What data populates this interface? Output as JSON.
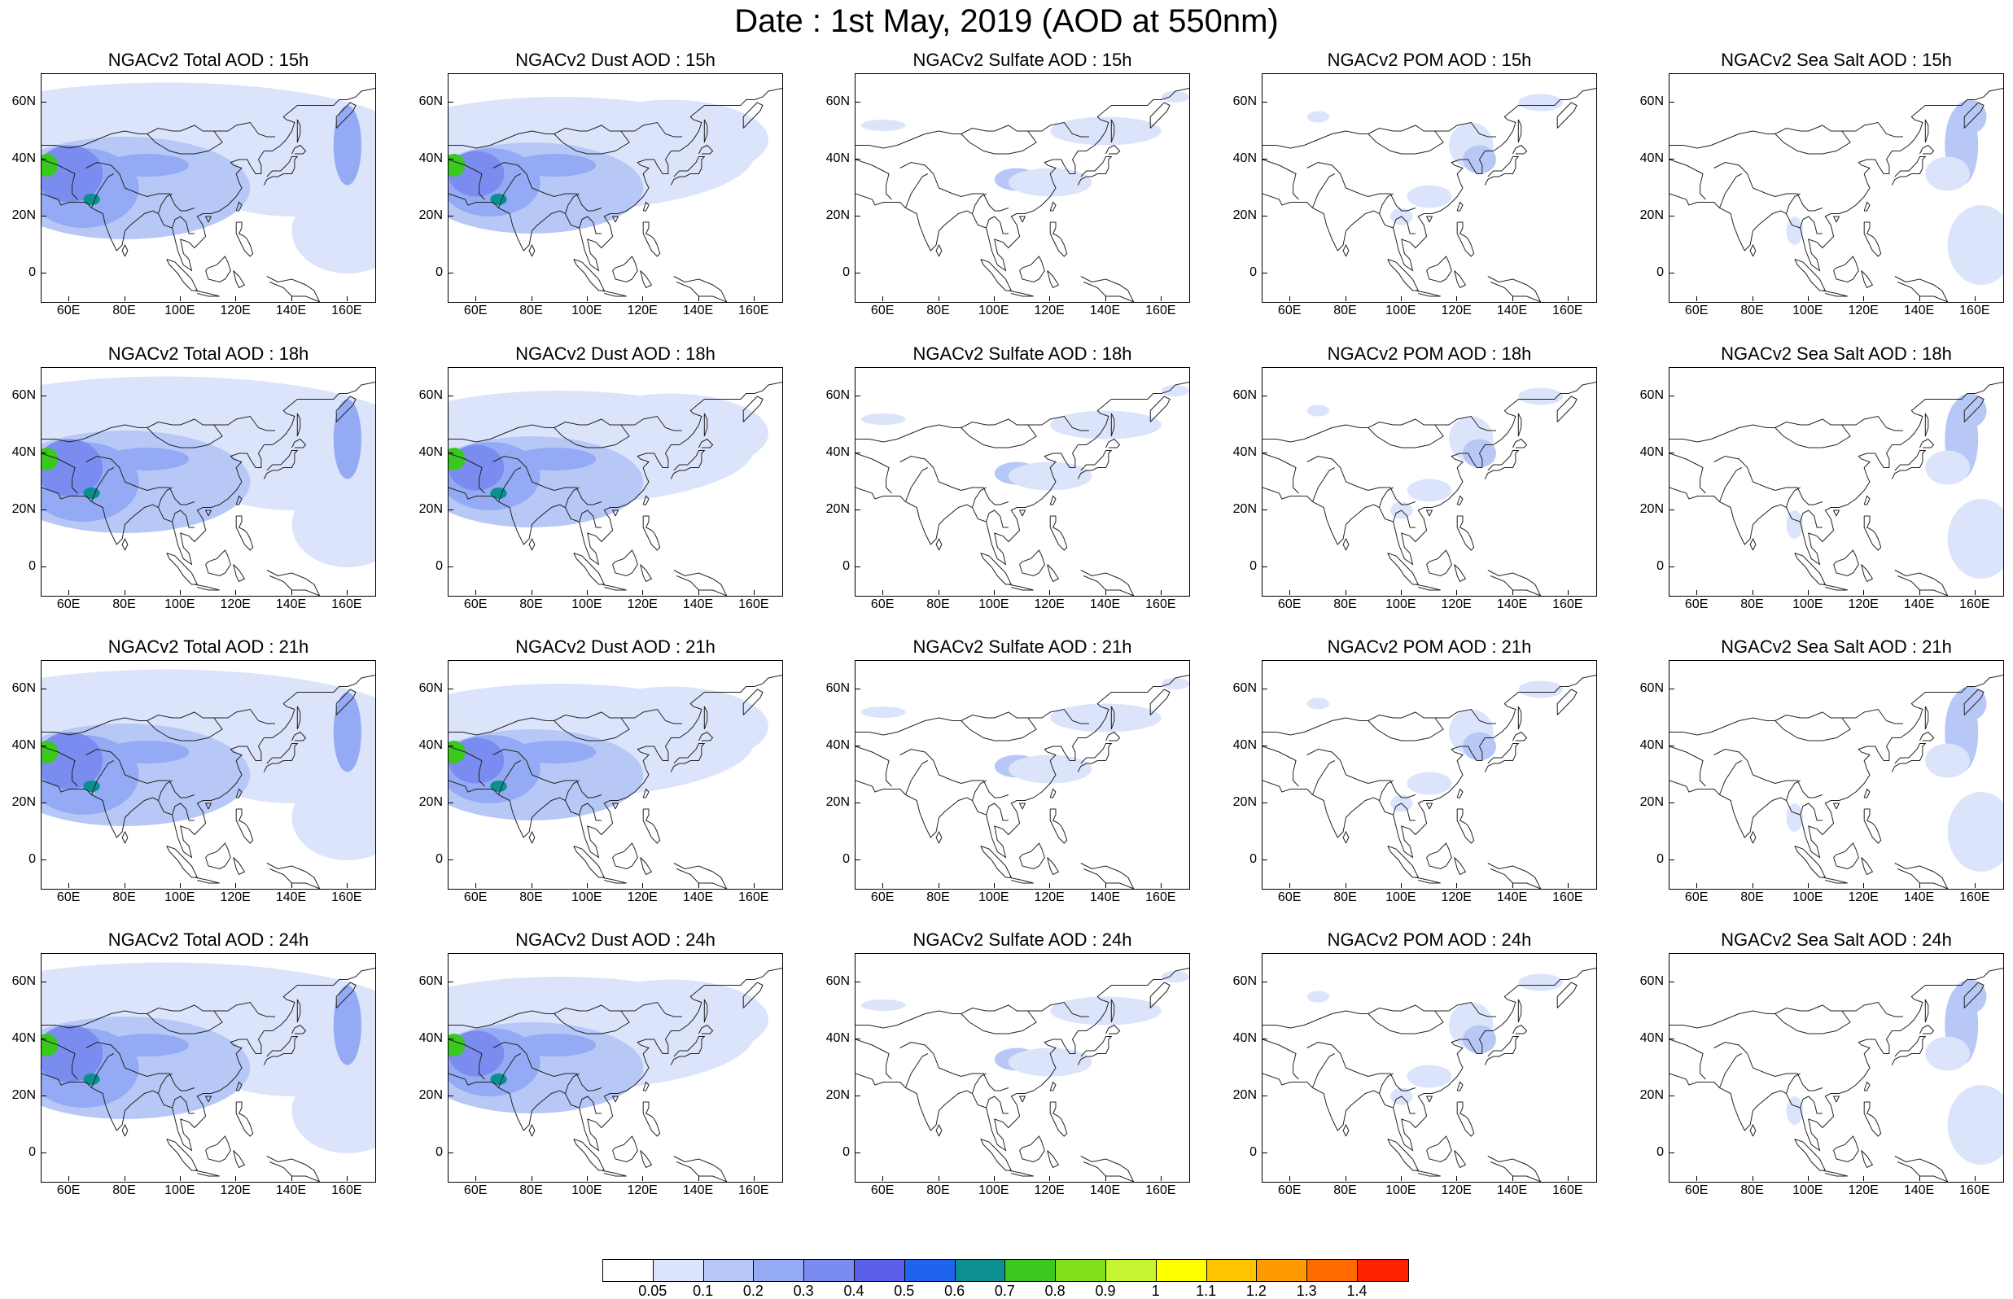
{
  "title": "Date : 1st May, 2019 (AOD at 550nm)",
  "lat_labels": [
    "60N",
    "40N",
    "20N",
    "0"
  ],
  "lat_values": [
    60,
    40,
    20,
    0
  ],
  "lon_labels": [
    "60E",
    "80E",
    "100E",
    "120E",
    "140E",
    "160E"
  ],
  "lon_values": [
    60,
    80,
    100,
    120,
    140,
    160
  ],
  "map_extent": {
    "lon_min": 50,
    "lon_max": 170,
    "lat_min": -10,
    "lat_max": 70
  },
  "rows": [
    {
      "hour": "15h",
      "titles": [
        "NGACv2 Total AOD : 15h",
        "NGACv2 Dust AOD : 15h",
        "NGACv2 Sulfate AOD : 15h",
        "NGACv2 POM AOD : 15h",
        "NGACv2 Sea Salt AOD : 15h"
      ]
    },
    {
      "hour": "18h",
      "titles": [
        "NGACv2 Total AOD : 18h",
        "NGACv2 Dust AOD : 18h",
        "NGACv2 Sulfate AOD : 18h",
        "NGACv2 POM AOD : 18h",
        "NGACv2 Sea Salt AOD : 18h"
      ]
    },
    {
      "hour": "21h",
      "titles": [
        "NGACv2 Total AOD : 21h",
        "NGACv2 Dust AOD : 21h",
        "NGACv2 Sulfate AOD : 21h",
        "NGACv2 POM AOD : 21h",
        "NGACv2 Sea Salt AOD : 21h"
      ]
    },
    {
      "hour": "24h",
      "titles": [
        "NGACv2 Total AOD : 24h",
        "NGACv2 Dust AOD : 24h",
        "NGACv2 Sulfate AOD : 24h",
        "NGACv2 POM AOD : 24h",
        "NGACv2 Sea Salt  AOD : 24h"
      ]
    }
  ],
  "species": [
    "total",
    "dust",
    "sulfate",
    "pom",
    "seasalt"
  ],
  "colorbar": {
    "labels": [
      "0.05",
      "0.1",
      "0.2",
      "0.3",
      "0.4",
      "0.5",
      "0.6",
      "0.7",
      "0.8",
      "0.9",
      "1",
      "1.1",
      "1.2",
      "1.3",
      "1.4"
    ],
    "colors": [
      "#ffffff",
      "#dbe4fb",
      "#b7c8f7",
      "#94aaf4",
      "#7a8cef",
      "#5a5fe8",
      "#1e64ee",
      "#0b8f8f",
      "#3ac81f",
      "#7fe01a",
      "#c7f534",
      "#ffff00",
      "#ffc300",
      "#ff9a00",
      "#ff6a00",
      "#ff2200"
    ]
  }
}
